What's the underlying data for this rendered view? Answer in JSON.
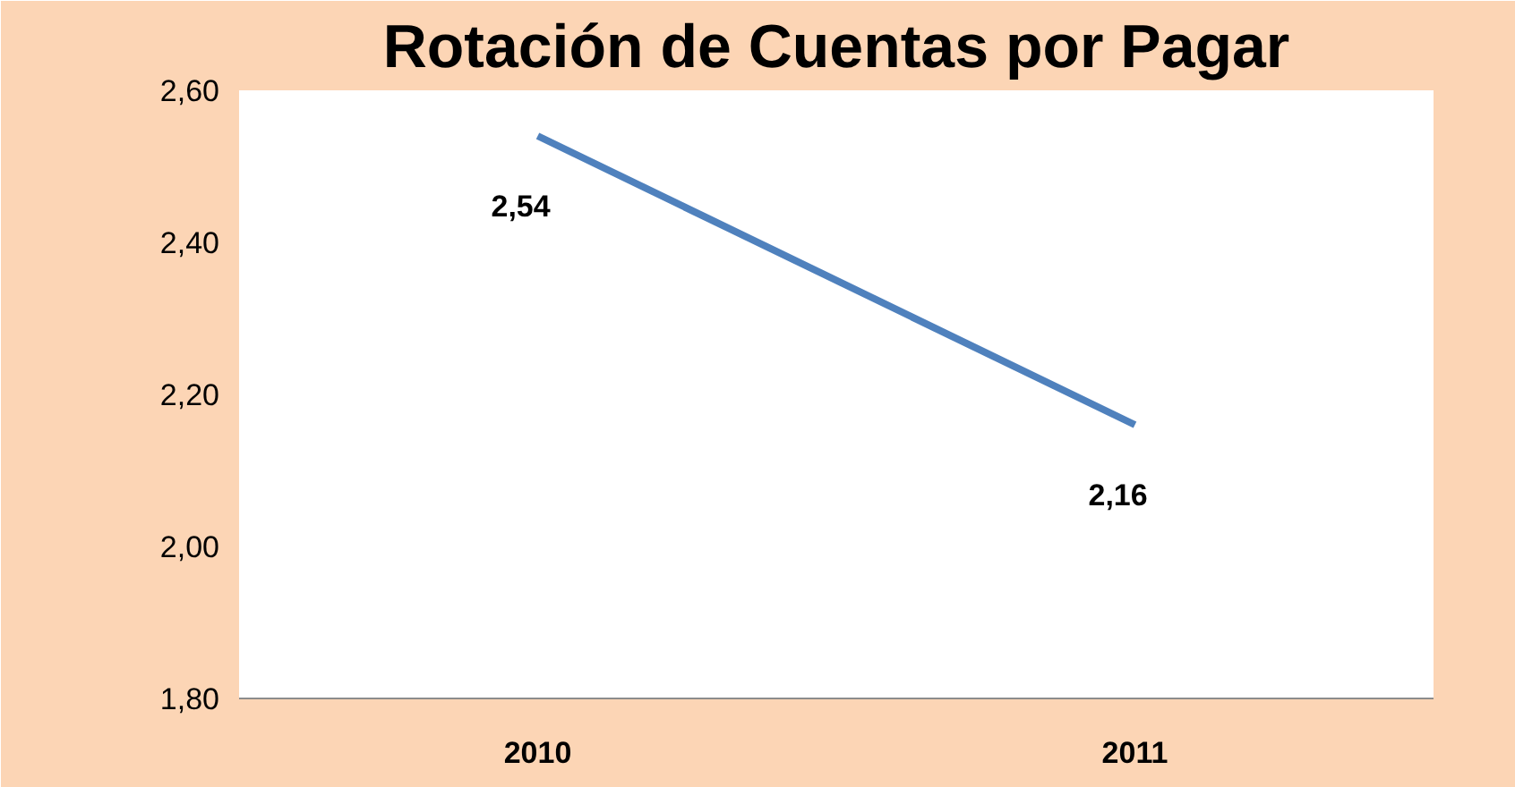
{
  "chart_data": {
    "type": "line",
    "title": "Rotación de Cuentas por Pagar",
    "categories": [
      "2010",
      "2011"
    ],
    "series": [
      {
        "color": "#4f81bd",
        "values": [
          2.54,
          2.16
        ],
        "value_labels": [
          "2,54",
          "2,16"
        ]
      }
    ],
    "ylim": [
      1.8,
      2.6
    ],
    "yticks": [
      {
        "value": 1.8,
        "label": "1,80"
      },
      {
        "value": 2.0,
        "label": "2,00"
      },
      {
        "value": 2.2,
        "label": "2,20"
      },
      {
        "value": 2.4,
        "label": "2,40"
      },
      {
        "value": 2.6,
        "label": "2,60"
      }
    ],
    "marker": "none",
    "line_style": "solid"
  }
}
